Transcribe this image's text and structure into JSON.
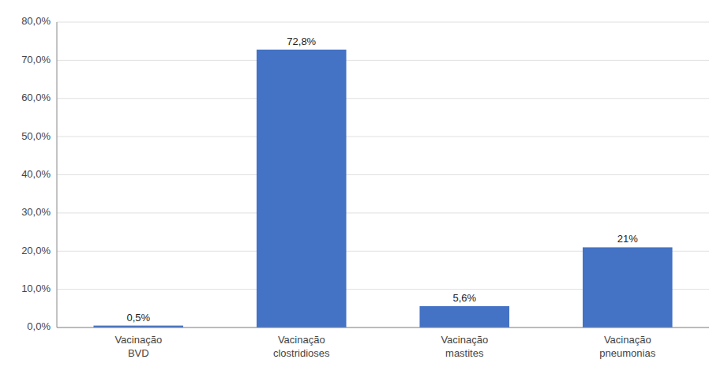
{
  "chart_data": {
    "type": "bar",
    "categories": [
      "Vacinação\nBVD",
      "Vacinação\nclostridioses",
      "Vacinação\nmastites",
      "Vacinação\npneumonias"
    ],
    "values": [
      0.5,
      72.8,
      5.6,
      21.0
    ],
    "value_labels": [
      "0,5%",
      "72,8%",
      "5,6%",
      "21%"
    ],
    "data_labels": true,
    "color": "#4472C4",
    "ylim": [
      0,
      80
    ],
    "yticks": [
      {
        "value": 0,
        "label": "0,0%"
      },
      {
        "value": 10,
        "label": "10,0%"
      },
      {
        "value": 20,
        "label": "20,0%"
      },
      {
        "value": 30,
        "label": "30,0%"
      },
      {
        "value": 40,
        "label": "40,0%"
      },
      {
        "value": 50,
        "label": "50,0%"
      },
      {
        "value": 60,
        "label": "60,0%"
      },
      {
        "value": 70,
        "label": "70,0%"
      },
      {
        "value": 80,
        "label": "80,0%"
      }
    ],
    "grid": true
  }
}
